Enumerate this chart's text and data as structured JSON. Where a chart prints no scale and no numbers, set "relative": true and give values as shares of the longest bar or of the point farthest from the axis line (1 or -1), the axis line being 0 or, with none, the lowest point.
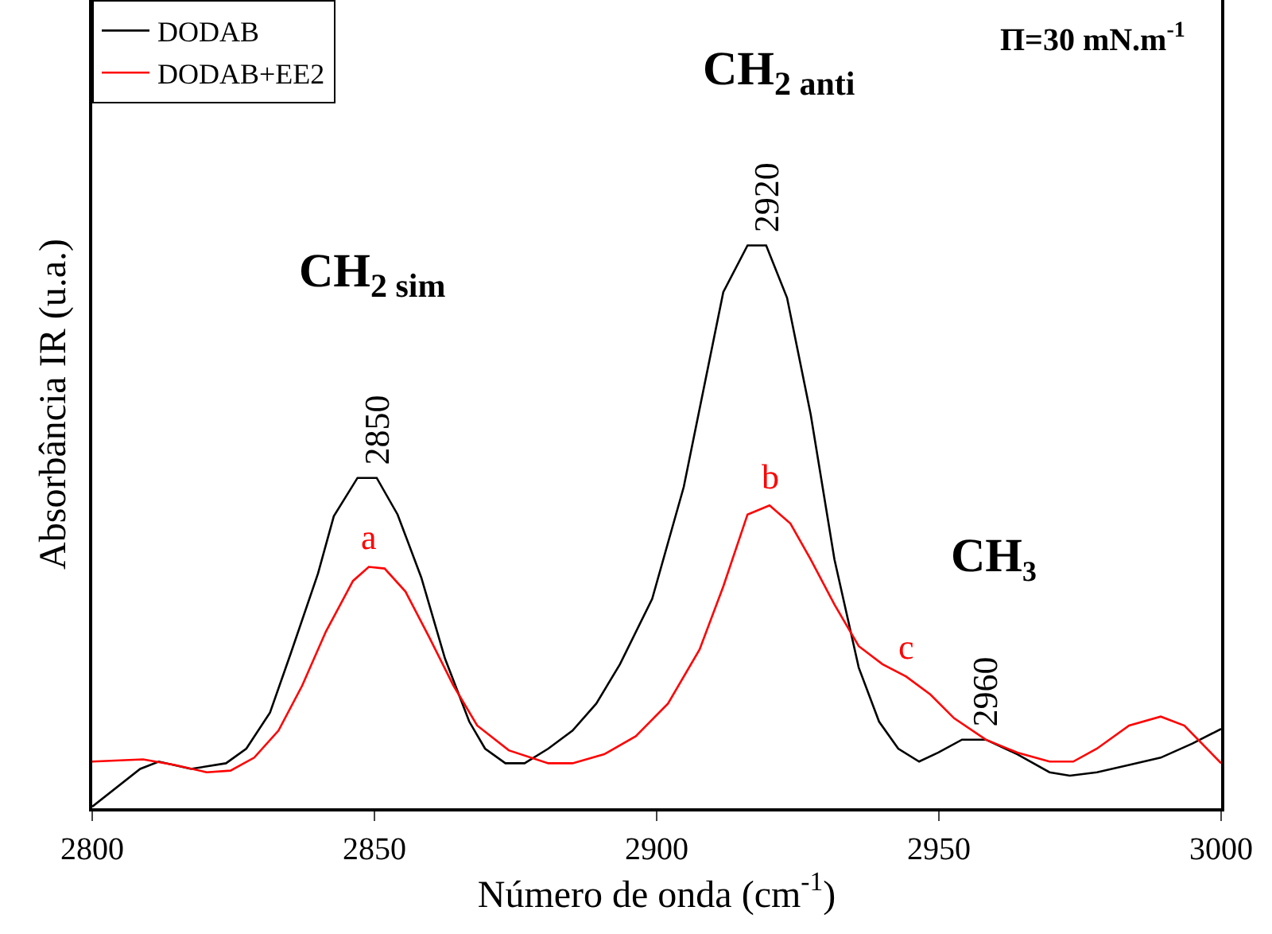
{
  "chart_data": {
    "type": "line",
    "relative": true,
    "xlabel": "Número de onda (cm$^{-1}$)",
    "ylabel": "Absorbância IR (u.a.)",
    "xlim": [
      2800,
      3000
    ],
    "xticks": [
      2800,
      2850,
      2900,
      2950,
      3000
    ],
    "grid": false,
    "legend": "top left",
    "marker": "none",
    "line_style": "solid",
    "series": [
      {
        "name": "DODAB",
        "color": "#000000",
        "x": [
          2800,
          2808.5,
          2811.8,
          2817.5,
          2823.7,
          2827.3,
          2831.5,
          2835.2,
          2840,
          2842.8,
          2847,
          2850.4,
          2854.1,
          2858.3,
          2862.5,
          2866.8,
          2869.6,
          2873.2,
          2876.6,
          2880.8,
          2885.1,
          2889.3,
          2893.5,
          2899.2,
          2904.8,
          2911.8,
          2916.1,
          2919.4,
          2923.1,
          2927.3,
          2931.5,
          2935.8,
          2939.4,
          2942.8,
          2946.5,
          2949.9,
          2954.1,
          2958.3,
          2963.9,
          2969.6,
          2973.2,
          2978,
          2983.7,
          2989.3,
          2994.9,
          3000
        ],
        "values": [
          0.003,
          0.07,
          0.083,
          0.07,
          0.08,
          0.106,
          0.17,
          0.276,
          0.417,
          0.519,
          0.587,
          0.587,
          0.522,
          0.41,
          0.266,
          0.154,
          0.106,
          0.08,
          0.08,
          0.106,
          0.138,
          0.186,
          0.256,
          0.372,
          0.571,
          0.917,
          1,
          1,
          0.907,
          0.699,
          0.442,
          0.25,
          0.154,
          0.106,
          0.083,
          0.099,
          0.122,
          0.122,
          0.096,
          0.064,
          0.058,
          0.064,
          0.077,
          0.09,
          0.115,
          0.141
        ]
      },
      {
        "name": "DODAB+EE2",
        "color": "#ff0000",
        "x": [
          2800,
          2809,
          2814.6,
          2820.3,
          2824.5,
          2828.7,
          2833,
          2837.2,
          2841.4,
          2846.2,
          2849,
          2851.8,
          2855.5,
          2859.7,
          2864,
          2868.2,
          2873.8,
          2880.8,
          2885.1,
          2890.7,
          2896.3,
          2902,
          2907.6,
          2911.8,
          2916.1,
          2920,
          2923.7,
          2927.3,
          2931.5,
          2935.8,
          2940,
          2944.2,
          2948.5,
          2952.7,
          2958.3,
          2963.9,
          2969.6,
          2973.8,
          2978,
          2983.7,
          2989.3,
          2993.5,
          3000
        ],
        "values": [
          0.083,
          0.087,
          0.077,
          0.064,
          0.067,
          0.09,
          0.138,
          0.218,
          0.314,
          0.404,
          0.429,
          0.426,
          0.385,
          0.304,
          0.218,
          0.147,
          0.103,
          0.08,
          0.08,
          0.096,
          0.128,
          0.186,
          0.282,
          0.394,
          0.522,
          0.538,
          0.506,
          0.442,
          0.362,
          0.288,
          0.256,
          0.234,
          0.202,
          0.16,
          0.122,
          0.099,
          0.083,
          0.083,
          0.106,
          0.147,
          0.163,
          0.147,
          0.08
        ]
      }
    ],
    "annotations": [
      {
        "text": "2850",
        "x": 2850.4,
        "y": 0.587
      },
      {
        "text": "2920",
        "x": 2919.4,
        "y": 1
      },
      {
        "text": "2960",
        "x": 2958.3,
        "y": 0.122
      },
      {
        "text": "a",
        "x": 2849,
        "y": 0.429
      },
      {
        "text": "b",
        "x": 2920,
        "y": 0.538
      },
      {
        "text": "c",
        "x": 2944.2,
        "y": 0.234
      },
      "CH$_{2 sim}$",
      "CH$_{2 anti}$",
      "CH₃",
      "Π=30 mN.m$^{-1}$"
    ]
  }
}
